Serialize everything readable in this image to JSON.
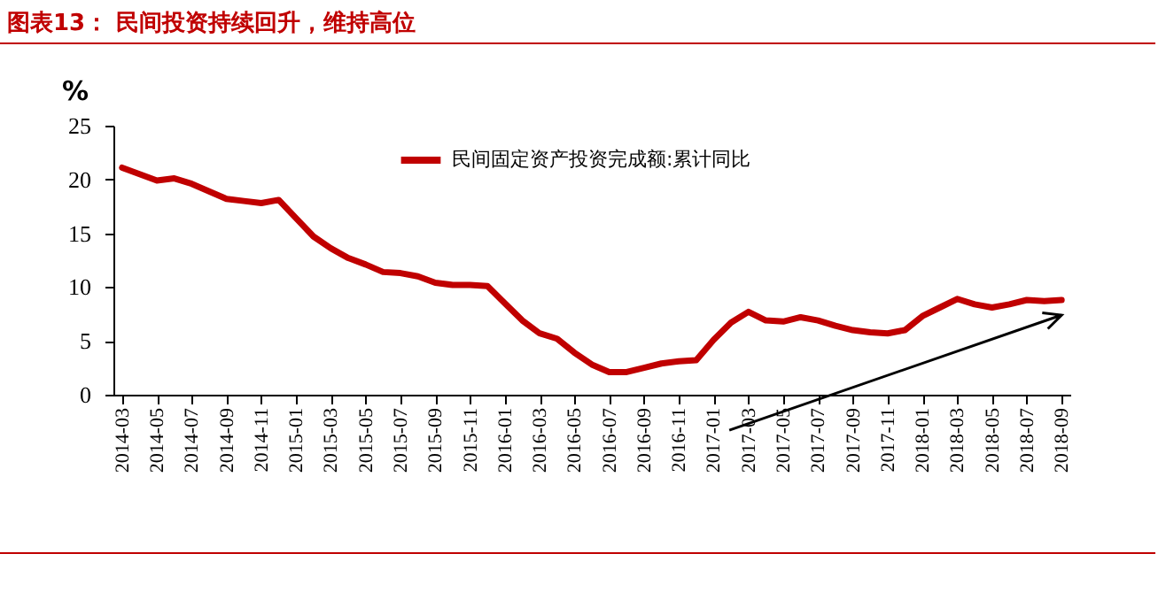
{
  "chart_data": {
    "type": "line",
    "title": "图表13：  民间投资持续回升，维持高位",
    "ylabel": "%",
    "categories": [
      "2014-03",
      null,
      "2014-05",
      null,
      "2014-07",
      null,
      "2014-09",
      null,
      "2014-11",
      null,
      "2015-01",
      null,
      "2015-03",
      null,
      "2015-05",
      null,
      "2015-07",
      null,
      "2015-09",
      null,
      "2015-11",
      null,
      "2016-01",
      null,
      "2016-03",
      null,
      "2016-05",
      null,
      "2016-07",
      null,
      "2016-09",
      null,
      "2016-11",
      null,
      "2017-01",
      null,
      "2017-03",
      null,
      "2017-05",
      null,
      "2017-07",
      null,
      "2017-09",
      null,
      "2017-11",
      null,
      "2018-01",
      null,
      "2018-03",
      null,
      "2018-05",
      null,
      "2018-07",
      null,
      "2018-09"
    ],
    "series": [
      {
        "name": "民间固定资产投资完成额:累计同比",
        "color": "#c00000",
        "values": [
          21.1,
          20.5,
          19.9,
          20.1,
          19.6,
          18.9,
          18.2,
          18.0,
          17.8,
          18.1,
          16.4,
          14.7,
          13.6,
          12.7,
          12.1,
          11.4,
          11.3,
          11.0,
          10.4,
          10.2,
          10.2,
          10.1,
          8.5,
          6.9,
          5.7,
          5.2,
          3.9,
          2.8,
          2.1,
          2.1,
          2.5,
          2.9,
          3.1,
          3.2,
          5.1,
          6.7,
          7.7,
          6.9,
          6.8,
          7.2,
          6.9,
          6.4,
          6.0,
          5.8,
          5.7,
          6.0,
          7.3,
          8.1,
          8.9,
          8.4,
          8.1,
          8.4,
          8.8,
          8.7,
          8.8
        ]
      }
    ],
    "ylim": [
      0,
      25
    ],
    "yticks": [
      0,
      5,
      10,
      15,
      20,
      25
    ],
    "grid": false,
    "legend": "top",
    "marker": "none",
    "line_style": "solid"
  }
}
